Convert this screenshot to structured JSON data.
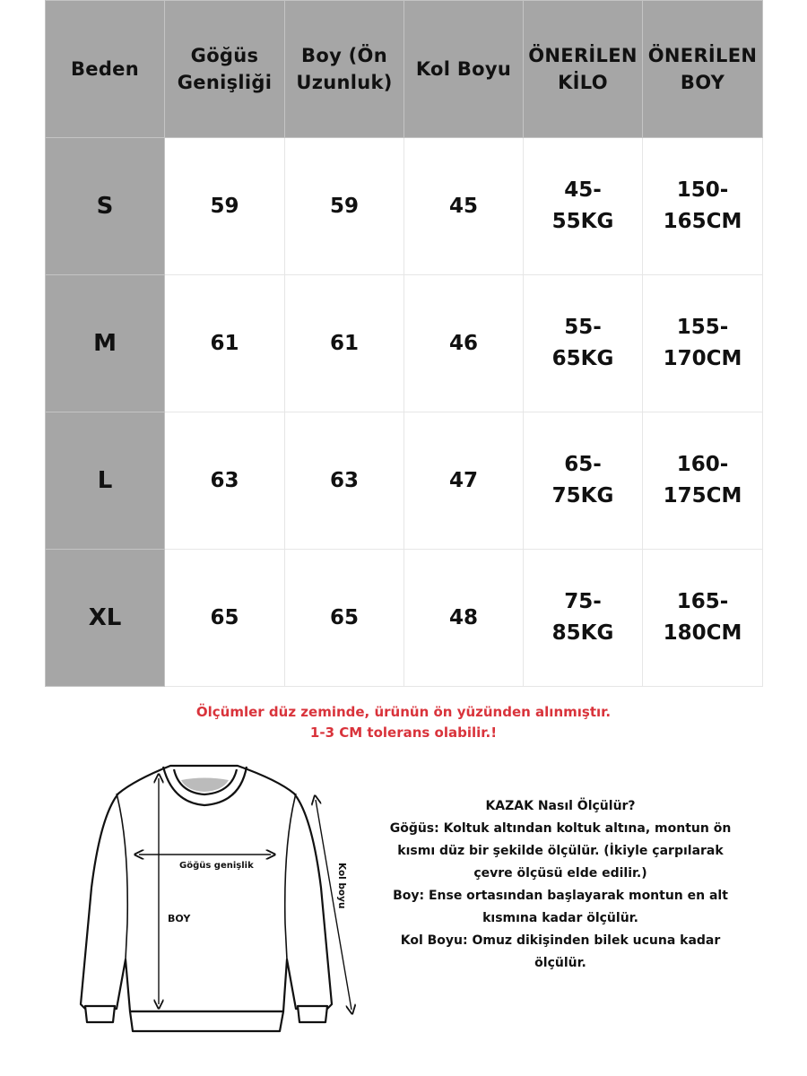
{
  "table": {
    "headers": [
      "Beden",
      "Göğüs Genişliği",
      "Boy (Ön Uzunluk)",
      "Kol Boyu",
      "ÖNERİLEN KİLO",
      "ÖNERİLEN BOY"
    ],
    "rows": [
      {
        "size": "S",
        "chest": "59",
        "length": "59",
        "sleeve": "45",
        "weight": "45-\n55KG",
        "height": "150-\n165CM"
      },
      {
        "size": "M",
        "chest": "61",
        "length": "61",
        "sleeve": "46",
        "weight": "55-\n65KG",
        "height": "155-\n170CM"
      },
      {
        "size": "L",
        "chest": "63",
        "length": "63",
        "sleeve": "47",
        "weight": "65-\n75KG",
        "height": "160-\n175CM"
      },
      {
        "size": "XL",
        "chest": "65",
        "length": "65",
        "sleeve": "48",
        "weight": "75-\n85KG",
        "height": "165-\n180CM"
      }
    ]
  },
  "note": {
    "line1": "Ölçümler düz zeminde, ürünün ön yüzünden alınmıştır.",
    "line2": "1-3 CM tolerans olabilir.!",
    "color": "#d9333b"
  },
  "diagram": {
    "chest_label": "Göğüs genişlik",
    "length_label": "BOY",
    "sleeve_label": "Kol boyu"
  },
  "howto": {
    "title": "KAZAK Nasıl Ölçülür?",
    "chest": "Göğüs: Koltuk altından koltuk altına, montun ön\nkısmı düz bir şekilde ölçülür. (İkiyle çarpılarak\nçevre ölçüsü elde edilir.)",
    "length": "Boy: Ense ortasından başlayarak montun en alt\nkısmına kadar ölçülür.",
    "sleeve": "Kol Boyu: Omuz dikişinden bilek ucuna kadar\nölçülür."
  },
  "colors": {
    "header_bg": "#a6a6a6",
    "cell_bg": "#ffffff"
  }
}
